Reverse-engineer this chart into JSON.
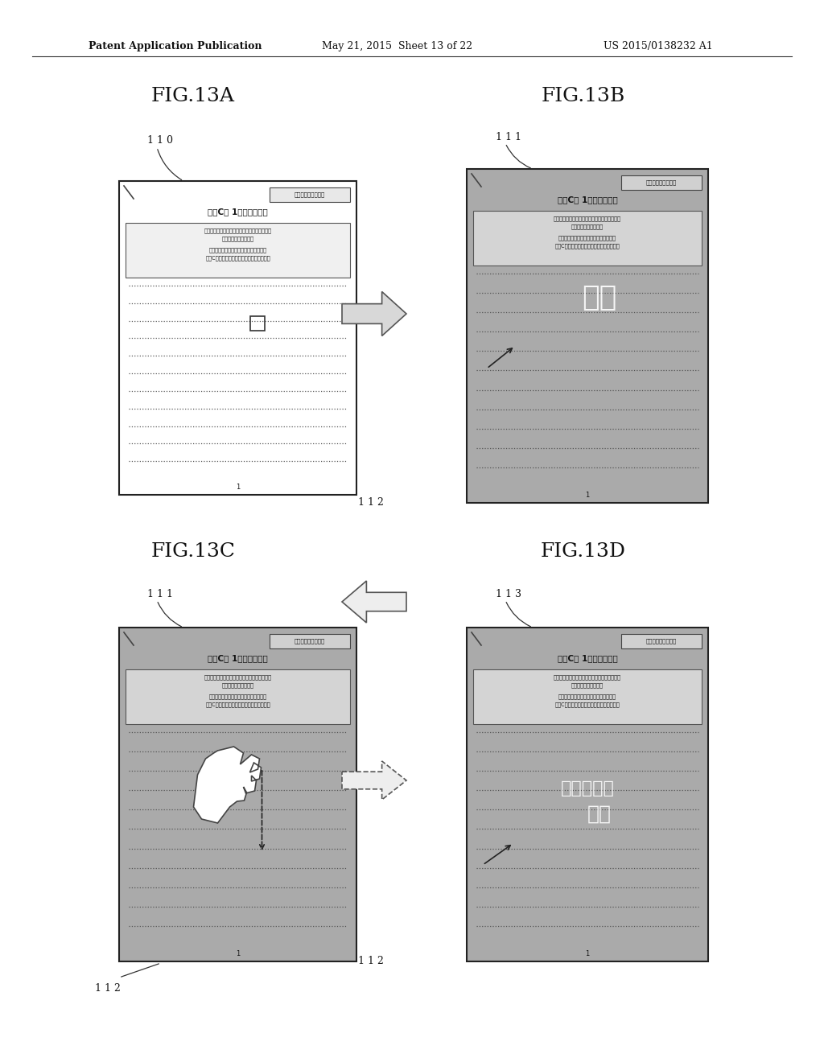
{
  "title_header_left": "Patent Application Publication",
  "title_header_mid": "May 21, 2015  Sheet 13 of 22",
  "title_header_right": "US 2015/0138232 A1",
  "fig_labels": [
    "FIG.13A",
    "FIG.13B",
    "FIG.13C",
    "FIG.13D"
  ],
  "ref_110": "1 1 0",
  "ref_111": "1 1 1",
  "ref_113": "1 1 3",
  "ref_112": "1 1 2",
  "doc_title": "開發C　 1次検討報告書",
  "doc_badge": "回覧（コピー禁止）",
  "doc_text_line1": "本回覧を、コピー（複製）、スキャン（保存）",
  "doc_text_line2": "することは禁止です。",
  "doc_text_line3": "他部門への展開を希望される場合には、",
  "doc_text_line4": "開發C（内線・・・）まで、御連絡下さい。",
  "overlay_13b": "です",
  "overlay_13d_line1": "不正コピー",
  "overlay_13d_line2": "です",
  "page_num": "1",
  "bg_white": "#ffffff",
  "bg_gray": "#aaaaaa",
  "bg_doc_white": "#f8f8f8",
  "bg_doc_gray": "#c8c8c8",
  "border_color": "#222222",
  "dot_color": "#555555",
  "text_dark": "#111111",
  "badge_bg": "#e0e0e0",
  "textbox_bg_white": "#f5f5f5",
  "textbox_bg_gray": "#b8b8b8",
  "overlay_color_b": "#dddddd",
  "overlay_color_d": "#dddddd"
}
